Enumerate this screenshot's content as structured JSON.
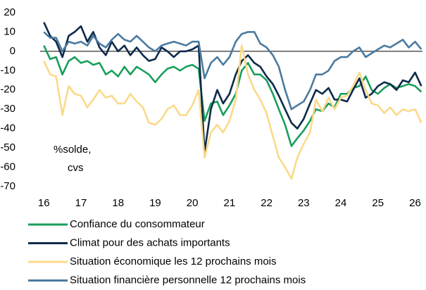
{
  "chart_data": {
    "type": "line",
    "annotations": [
      "%solde,",
      "cvs"
    ],
    "x": [
      16,
      16.17,
      16.33,
      16.5,
      16.67,
      16.83,
      17,
      17.17,
      17.33,
      17.5,
      17.67,
      17.83,
      18,
      18.17,
      18.33,
      18.5,
      18.67,
      18.83,
      19,
      19.17,
      19.33,
      19.5,
      19.67,
      19.83,
      20,
      20.17,
      20.33,
      20.5,
      20.67,
      20.83,
      21,
      21.17,
      21.33,
      21.5,
      21.67,
      21.83,
      22,
      22.17,
      22.33,
      22.5,
      22.67,
      22.83,
      23,
      23.17,
      23.33,
      23.5,
      23.67,
      23.83,
      24,
      24.17,
      24.33,
      24.5,
      24.67,
      24.83,
      25,
      25.17,
      25.33,
      25.5,
      25.67,
      25.83,
      26,
      26.17
    ],
    "series": [
      {
        "name": "Confiance du consommateur",
        "color": "#1a9e5c",
        "values": [
          3,
          -4,
          -3,
          -12,
          -5,
          -3,
          -6,
          -5,
          -7,
          -6,
          -12,
          -10,
          -13,
          -8,
          -12,
          -8,
          -10,
          -12,
          -16,
          -12,
          -9,
          -8,
          -10,
          -8,
          -7,
          -9,
          -36,
          -27,
          -26,
          -33,
          -28,
          -22,
          -10,
          -6,
          -12,
          -12,
          -15,
          -22,
          -30,
          -38,
          -49,
          -45,
          -41,
          -36,
          -30,
          -31,
          -27,
          -29,
          -22,
          -22,
          -19,
          -18,
          -13,
          -20,
          -22,
          -19,
          -17,
          -19,
          -18,
          -17,
          -18,
          -21
        ]
      },
      {
        "name": "Climat pour des achats importants",
        "color": "#0d2a4a",
        "values": [
          15,
          8,
          5,
          -3,
          8,
          10,
          13,
          5,
          10,
          2,
          -2,
          5,
          0,
          3,
          -2,
          2,
          -2,
          -5,
          -4,
          2,
          0,
          -3,
          0,
          0,
          1,
          3,
          -52,
          -30,
          -20,
          -27,
          -22,
          -12,
          -5,
          -2,
          -6,
          -8,
          -13,
          -17,
          -23,
          -30,
          -37,
          -40,
          -35,
          -27,
          -20,
          -22,
          -19,
          -25,
          -25,
          -26,
          -20,
          -14,
          -24,
          -22,
          -18,
          -16,
          -17,
          -20,
          -15,
          -16,
          -11,
          -18
        ]
      },
      {
        "name": "Situation économique les 12 prochains mois",
        "color": "#fbd98a",
        "values": [
          -5,
          -12,
          -13,
          -33,
          -18,
          -22,
          -23,
          -29,
          -25,
          -20,
          -24,
          -23,
          -27,
          -27,
          -22,
          -26,
          -29,
          -37,
          -38,
          -35,
          -30,
          -28,
          -33,
          -33,
          -28,
          -20,
          -55,
          -42,
          -38,
          -42,
          -36,
          -25,
          3,
          -12,
          -20,
          -25,
          -32,
          -44,
          -55,
          -60,
          -66,
          -55,
          -48,
          -42,
          -25,
          -31,
          -24,
          -30,
          -24,
          -23,
          -18,
          -11,
          -20,
          -27,
          -28,
          -32,
          -29,
          -33,
          -30,
          -31,
          -30,
          -37
        ]
      },
      {
        "name": "Situation financière personnelle 12 prochains mois",
        "color": "#4a7aa0",
        "values": [
          10,
          7,
          7,
          0,
          5,
          4,
          5,
          3,
          8,
          4,
          2,
          6,
          9,
          6,
          5,
          8,
          5,
          2,
          0,
          3,
          4,
          5,
          4,
          3,
          5,
          5,
          -14,
          -6,
          -3,
          -7,
          -3,
          5,
          9,
          10,
          10,
          4,
          2,
          -2,
          -8,
          -20,
          -30,
          -28,
          -26,
          -20,
          -12,
          -12,
          -10,
          -5,
          -3,
          -3,
          0,
          2,
          -3,
          -1,
          1,
          3,
          2,
          4,
          6,
          2,
          5,
          1
        ]
      }
    ],
    "xlim": [
      15.9,
      26.2
    ],
    "xticks": [
      16,
      17,
      18,
      19,
      20,
      21,
      22,
      23,
      24,
      25,
      26
    ],
    "ylim": [
      -70,
      20
    ],
    "yticks": [
      20,
      10,
      0,
      -10,
      -20,
      -30,
      -40,
      -50,
      -60,
      -70
    ],
    "grid": false
  }
}
